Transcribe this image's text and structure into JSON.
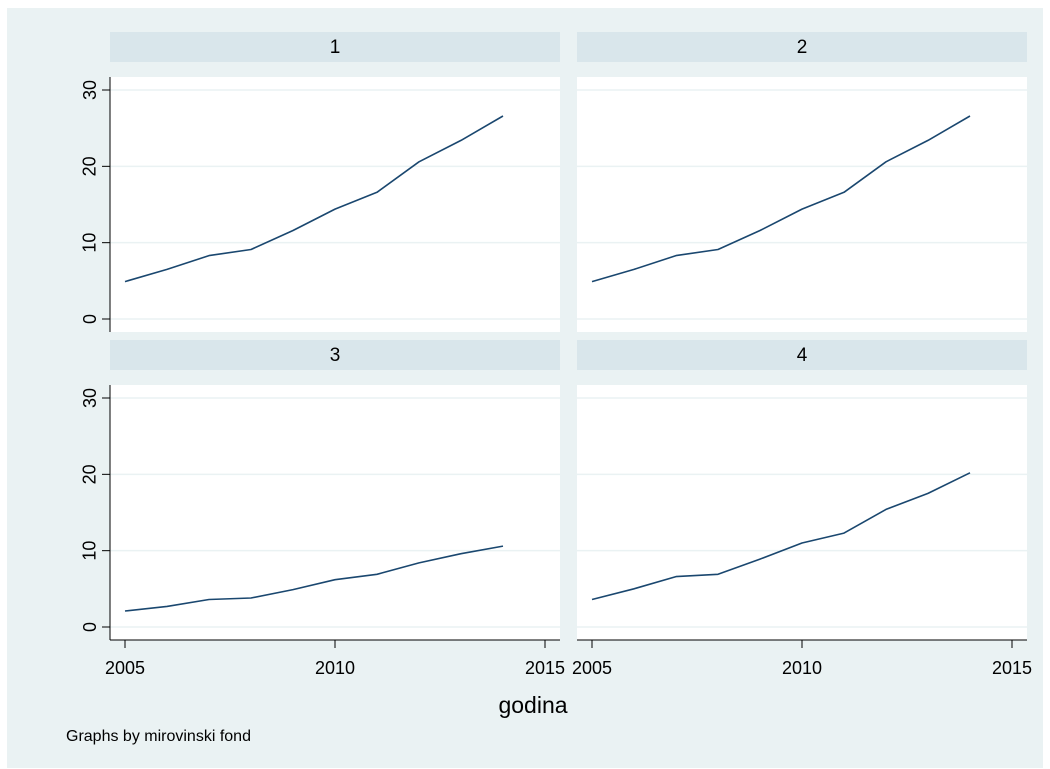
{
  "chart_data": {
    "type": "line",
    "layout": "2x2 small multiples (by group)",
    "xlabel": "godina",
    "ylabel": "",
    "note": "Graphs by mirovinski fond",
    "xlim": [
      2005,
      2015
    ],
    "ylim": [
      0,
      30
    ],
    "x_ticks": [
      2005,
      2010,
      2015
    ],
    "y_ticks": [
      0,
      10,
      20,
      30
    ],
    "grid": true,
    "colors": {
      "outer_background": "#eaf2f3",
      "plot_background": "#ffffff",
      "panel_header": "#d9e6eb",
      "line": "#1a476f",
      "grid": "#eaf2f3",
      "axis": "#000000"
    },
    "x": [
      2005,
      2006,
      2007,
      2008,
      2009,
      2010,
      2011,
      2012,
      2013,
      2014
    ],
    "panels": [
      {
        "label": "1",
        "values": [
          4.9,
          6.5,
          8.3,
          9.1,
          11.6,
          14.4,
          16.6,
          20.6,
          23.4,
          26.6
        ]
      },
      {
        "label": "2",
        "values": [
          4.9,
          6.5,
          8.3,
          9.1,
          11.6,
          14.4,
          16.6,
          20.6,
          23.4,
          26.6
        ]
      },
      {
        "label": "3",
        "values": [
          2.1,
          2.7,
          3.6,
          3.8,
          4.9,
          6.2,
          6.9,
          8.4,
          9.6,
          10.6
        ]
      },
      {
        "label": "4",
        "values": [
          3.6,
          5.0,
          6.6,
          6.9,
          8.9,
          11.0,
          12.3,
          15.4,
          17.5,
          20.2
        ]
      }
    ]
  }
}
